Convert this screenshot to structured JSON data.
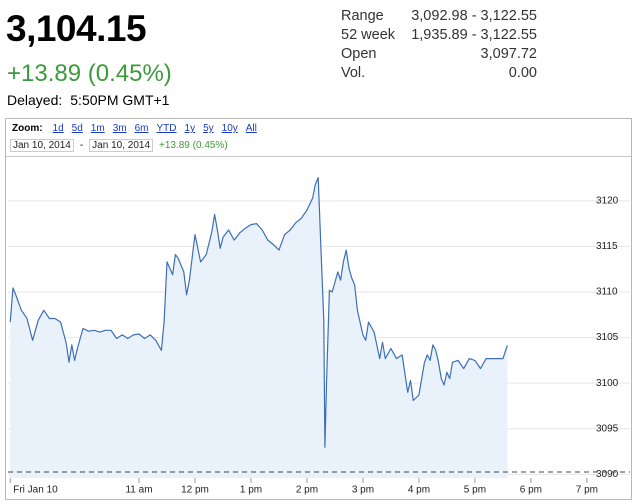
{
  "quote": {
    "price": "3,104.15",
    "change": "+13.89 (0.45%)",
    "delayed_label": "Delayed:",
    "delayed_time": "5:50PM GMT+1"
  },
  "stats": [
    {
      "label": "Range",
      "value": "3,092.98 - 3,122.55"
    },
    {
      "label": "52 week",
      "value": "1,935.89 - 3,122.55"
    },
    {
      "label": "Open",
      "value": "3,097.72"
    },
    {
      "label": "Vol.",
      "value": "0.00"
    }
  ],
  "toolbar": {
    "zoom_label": "Zoom:",
    "zoom_options": [
      "1d",
      "5d",
      "1m",
      "3m",
      "6m",
      "YTD",
      "1y",
      "5y",
      "10y",
      "All"
    ],
    "date_from": "Jan 10, 2014",
    "date_separator": "-",
    "date_to": "Jan 10, 2014",
    "change": "+13.89 (0.45%)"
  },
  "chart_data": {
    "type": "line",
    "x": [
      8.7,
      8.75,
      8.8,
      8.9,
      9.0,
      9.1,
      9.2,
      9.3,
      9.4,
      9.5,
      9.6,
      9.7,
      9.75,
      9.8,
      9.85,
      9.9,
      10.0,
      10.1,
      10.2,
      10.3,
      10.4,
      10.5,
      10.6,
      10.7,
      10.8,
      10.9,
      11.0,
      11.1,
      11.2,
      11.3,
      11.4,
      11.45,
      11.5,
      11.6,
      11.65,
      11.7,
      11.8,
      11.85,
      11.9,
      12.0,
      12.1,
      12.2,
      12.3,
      12.35,
      12.4,
      12.45,
      12.5,
      12.6,
      12.7,
      12.8,
      12.9,
      13.0,
      13.1,
      13.2,
      13.3,
      13.4,
      13.5,
      13.6,
      13.7,
      13.8,
      13.9,
      14.0,
      14.1,
      14.15,
      14.2,
      14.25,
      14.3,
      14.32,
      14.35,
      14.4,
      14.45,
      14.5,
      14.55,
      14.6,
      14.65,
      14.7,
      14.75,
      14.8,
      14.85,
      14.9,
      15.0,
      15.05,
      15.1,
      15.2,
      15.3,
      15.35,
      15.4,
      15.5,
      15.6,
      15.7,
      15.8,
      15.85,
      15.9,
      16.0,
      16.05,
      16.1,
      16.15,
      16.2,
      16.25,
      16.3,
      16.35,
      16.4,
      16.45,
      16.5,
      16.55,
      16.6,
      16.7,
      16.8,
      16.9,
      17.0,
      17.1,
      17.2,
      17.3,
      17.4,
      17.5,
      17.58
    ],
    "values": [
      3106.7,
      3110.44,
      3109.67,
      3108.0,
      3107.1,
      3104.7,
      3106.9,
      3108.0,
      3107.1,
      3107.1,
      3106.7,
      3104.4,
      3102.3,
      3104.2,
      3102.5,
      3103.8,
      3106.0,
      3105.7,
      3105.8,
      3105.6,
      3105.8,
      3105.8,
      3104.9,
      3105.3,
      3104.9,
      3105.3,
      3105.4,
      3104.9,
      3105.3,
      3104.7,
      3103.6,
      3106.9,
      3113.3,
      3111.9,
      3114.1,
      3113.7,
      3112.2,
      3109.7,
      3111.3,
      3116.3,
      3113.3,
      3114.1,
      3116.6,
      3118.5,
      3116.8,
      3114.8,
      3116.0,
      3116.8,
      3115.7,
      3116.5,
      3117.0,
      3117.4,
      3117.5,
      3116.8,
      3115.7,
      3115.2,
      3114.6,
      3116.3,
      3116.8,
      3117.6,
      3118.1,
      3119.0,
      3120.3,
      3121.8,
      3122.55,
      3114.6,
      3106.9,
      3092.98,
      3100.3,
      3110.2,
      3110.0,
      3111.1,
      3112.2,
      3111.3,
      3113.3,
      3114.6,
      3112.6,
      3111.5,
      3110.8,
      3108.0,
      3105.3,
      3104.7,
      3106.7,
      3105.6,
      3102.7,
      3104.5,
      3102.7,
      3103.8,
      3102.7,
      3103.1,
      3099.0,
      3100.3,
      3098.1,
      3098.7,
      3100.5,
      3102.3,
      3103.1,
      3102.5,
      3104.2,
      3103.6,
      3102.3,
      3100.5,
      3099.8,
      3101.2,
      3100.5,
      3102.3,
      3102.5,
      3101.6,
      3102.7,
      3102.5,
      3101.6,
      3102.7,
      3102.7,
      3102.7,
      3102.7,
      3104.15
    ],
    "color": "#3d6fb6",
    "fill_color": "#e9f2fb",
    "previous_close": 3090.26,
    "xlim": [
      8.66,
      19.77
    ],
    "xticks": [
      {
        "value": 8.7,
        "label": "Fri Jan 10"
      },
      {
        "value": 11,
        "label": "11 am"
      },
      {
        "value": 12,
        "label": "12 pm"
      },
      {
        "value": 13,
        "label": "1 pm"
      },
      {
        "value": 14,
        "label": "2 pm"
      },
      {
        "value": 15,
        "label": "3 pm"
      },
      {
        "value": 16,
        "label": "4 pm"
      },
      {
        "value": 17,
        "label": "5 pm"
      },
      {
        "value": 18,
        "label": "6 pm"
      },
      {
        "value": 19,
        "label": "7 pm"
      }
    ],
    "ylim": [
      3089.6,
      3124.7
    ],
    "yticks": [
      3090,
      3095,
      3100,
      3105,
      3110,
      3115,
      3120
    ],
    "grid": true
  }
}
